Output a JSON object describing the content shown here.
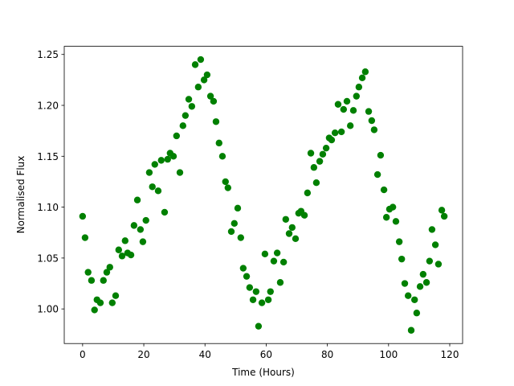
{
  "chart_data": {
    "type": "scatter",
    "xlabel": "Time (Hours)",
    "ylabel": "Normalised Flux",
    "color": "green",
    "x": [
      0,
      0.8,
      1.8,
      2.9,
      3.9,
      4.7,
      5.8,
      6.8,
      7.9,
      8.9,
      9.7,
      10.8,
      11.8,
      12.9,
      13.9,
      14.7,
      15.8,
      16.8,
      17.9,
      18.9,
      19.7,
      20.7,
      21.8,
      22.8,
      23.6,
      24.7,
      25.7,
      26.8,
      27.8,
      28.6,
      29.7,
      30.7,
      31.8,
      32.8,
      33.6,
      34.7,
      35.7,
      36.8,
      37.8,
      38.6,
      39.7,
      40.7,
      41.8,
      42.8,
      43.6,
      44.6,
      45.7,
      46.7,
      47.5,
      48.6,
      49.6,
      50.7,
      51.7,
      52.5,
      53.6,
      54.6,
      55.7,
      56.7,
      57.5,
      58.6,
      59.6,
      60.7,
      61.4,
      62.5,
      63.6,
      64.6,
      65.7,
      66.4,
      67.5,
      68.5,
      69.6,
      70.6,
      71.4,
      72.5,
      73.5,
      74.6,
      75.6,
      76.4,
      77.5,
      78.5,
      79.6,
      80.6,
      81.4,
      82.5,
      83.5,
      84.6,
      85.3,
      86.4,
      87.5,
      88.5,
      89.5,
      90.3,
      91.4,
      92.4,
      93.5,
      94.5,
      95.3,
      96.4,
      97.4,
      98.5,
      99.3,
      100.3,
      101.4,
      102.4,
      103.5,
      104.3,
      105.3,
      106.4,
      107.4,
      108.5,
      109.2,
      110.3,
      111.3,
      112.4,
      113.4,
      114.2,
      115.3,
      116.3,
      117.4,
      118.2
    ],
    "values": [
      1.091,
      1.07,
      1.036,
      1.028,
      0.999,
      1.009,
      1.006,
      1.028,
      1.036,
      1.041,
      1.006,
      1.013,
      1.058,
      1.052,
      1.067,
      1.055,
      1.053,
      1.082,
      1.107,
      1.078,
      1.066,
      1.087,
      1.134,
      1.12,
      1.142,
      1.116,
      1.146,
      1.095,
      1.147,
      1.153,
      1.15,
      1.17,
      1.134,
      1.18,
      1.19,
      1.206,
      1.199,
      1.24,
      1.218,
      1.245,
      1.225,
      1.23,
      1.209,
      1.204,
      1.184,
      1.163,
      1.15,
      1.125,
      1.119,
      1.076,
      1.084,
      1.099,
      1.07,
      1.04,
      1.032,
      1.021,
      1.009,
      1.017,
      0.983,
      1.006,
      1.054,
      1.009,
      1.017,
      1.047,
      1.055,
      1.026,
      1.046,
      1.088,
      1.074,
      1.08,
      1.069,
      1.094,
      1.096,
      1.092,
      1.114,
      1.153,
      1.139,
      1.124,
      1.145,
      1.152,
      1.158,
      1.168,
      1.166,
      1.173,
      1.201,
      1.174,
      1.196,
      1.204,
      1.18,
      1.195,
      1.209,
      1.218,
      1.227,
      1.233,
      1.194,
      1.185,
      1.176,
      1.132,
      1.151,
      1.117,
      1.09,
      1.098,
      1.1,
      1.086,
      1.066,
      1.049,
      1.025,
      1.013,
      0.979,
      1.009,
      0.996,
      1.022,
      1.034,
      1.026,
      1.047,
      1.078,
      1.063,
      1.044,
      1.097,
      1.091
    ],
    "xlim": [
      -6,
      124.2
    ],
    "ylim": [
      0.966,
      1.258
    ],
    "xticks": [
      0,
      20,
      40,
      60,
      80,
      100,
      120
    ],
    "yticks": [
      {
        "value": 1.0,
        "label": "1.00"
      },
      1.05,
      {
        "value": 1.1,
        "label": "1.10"
      },
      1.15,
      {
        "value": 1.2,
        "label": "1.20"
      },
      1.25
    ]
  }
}
